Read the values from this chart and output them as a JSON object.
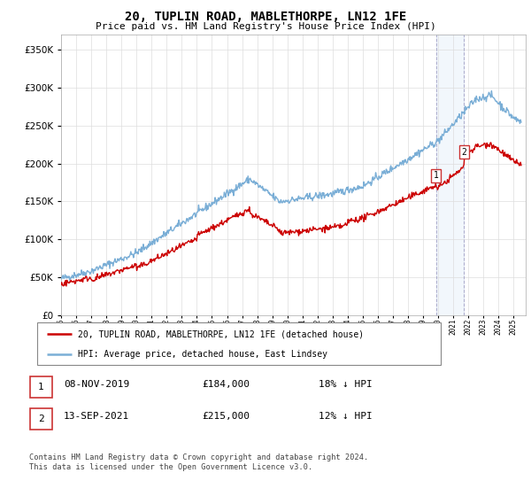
{
  "title": "20, TUPLIN ROAD, MABLETHORPE, LN12 1FE",
  "subtitle": "Price paid vs. HM Land Registry's House Price Index (HPI)",
  "ylim": [
    0,
    370000
  ],
  "xlim_start": 1995.0,
  "xlim_end": 2025.8,
  "red_color": "#cc0000",
  "blue_color": "#7aaed6",
  "highlight_color": "#ddeeff",
  "marker1_x": 2019.86,
  "marker1_y": 184000,
  "marker1_label": "1",
  "marker2_x": 2021.71,
  "marker2_y": 215000,
  "marker2_label": "2",
  "legend_label_red": "20, TUPLIN ROAD, MABLETHORPE, LN12 1FE (detached house)",
  "legend_label_blue": "HPI: Average price, detached house, East Lindsey",
  "table_row1": [
    "1",
    "08-NOV-2019",
    "£184,000",
    "18% ↓ HPI"
  ],
  "table_row2": [
    "2",
    "13-SEP-2021",
    "£215,000",
    "12% ↓ HPI"
  ],
  "footer": "Contains HM Land Registry data © Crown copyright and database right 2024.\nThis data is licensed under the Open Government Licence v3.0.",
  "grid_color": "#dddddd"
}
